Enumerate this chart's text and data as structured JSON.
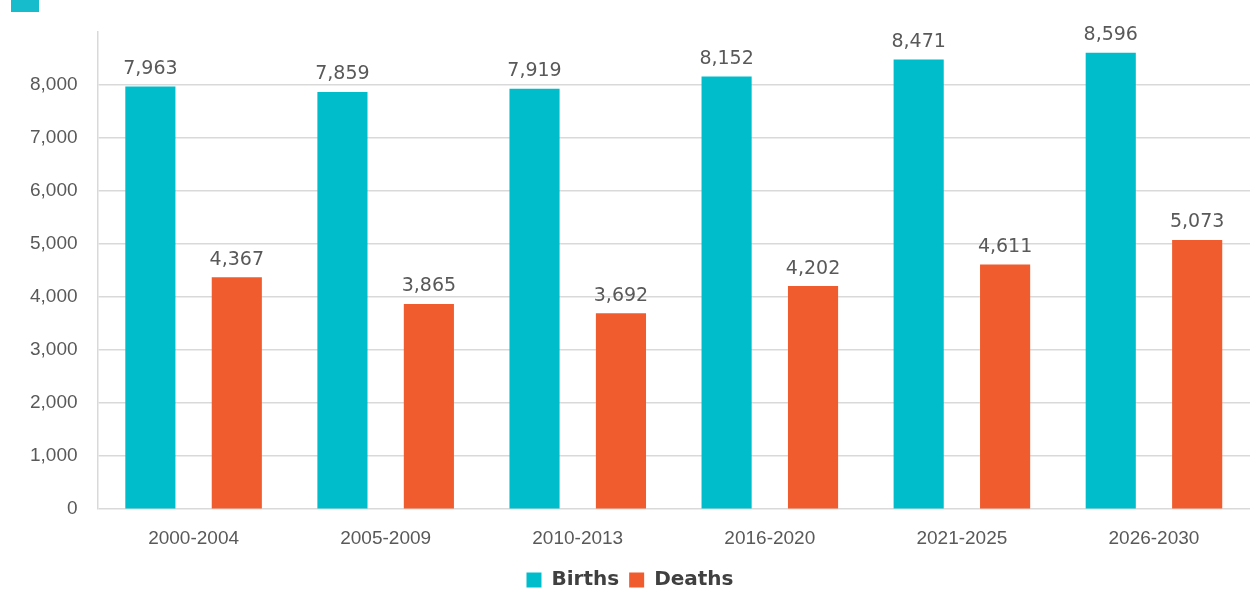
{
  "chart_data": {
    "type": "bar",
    "categories": [
      "2000-2004",
      "2005-2009",
      "2010-2013",
      "2016-2020",
      "2021-2025",
      "2026-2030"
    ],
    "series": [
      {
        "name": "Births",
        "color": "#00bdcc",
        "values": [
          7963,
          7859,
          7919,
          8152,
          8471,
          8596
        ],
        "value_labels": [
          "7,963",
          "7,859",
          "7,919",
          "8,152",
          "8,471",
          "8,596"
        ]
      },
      {
        "name": "Deaths",
        "color": "#f05c2d",
        "values": [
          4367,
          3865,
          3692,
          4202,
          4611,
          5073
        ],
        "value_labels": [
          "4,367",
          "3,865",
          "3,692",
          "4,202",
          "4,611",
          "5,073"
        ]
      }
    ],
    "ylim": [
      0,
      9000
    ],
    "yticks": [
      0,
      {
        "value": 1000,
        "label": "1,000"
      },
      {
        "value": 2000,
        "label": "2,000"
      },
      {
        "value": 3000,
        "label": "3,000"
      },
      {
        "value": 4000,
        "label": "4,000"
      },
      {
        "value": 5000,
        "label": "5,000"
      },
      {
        "value": 6000,
        "label": "6,000"
      },
      {
        "value": 7000,
        "label": "7,000"
      },
      {
        "value": 8000,
        "label": "8,000"
      }
    ],
    "grid": "y",
    "legend": "bottom"
  }
}
